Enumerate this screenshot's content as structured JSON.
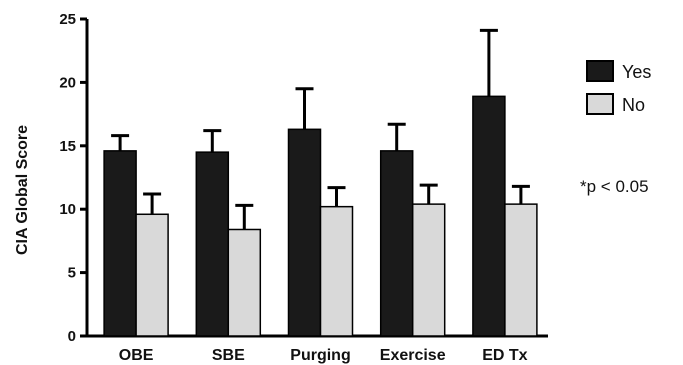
{
  "chart_data": {
    "type": "bar",
    "title": "",
    "xlabel": "",
    "ylabel": "CIA Global Score",
    "ylim": [
      0,
      25
    ],
    "yticks": [
      0,
      5,
      10,
      15,
      20,
      25
    ],
    "categories": [
      "OBE",
      "SBE",
      "Purging",
      "Exercise",
      "ED Tx"
    ],
    "series": [
      {
        "name": "Yes",
        "color": "#1a1a1a",
        "values": [
          14.6,
          14.5,
          16.3,
          14.6,
          18.9
        ],
        "error": [
          1.2,
          1.7,
          3.2,
          2.1,
          5.2
        ]
      },
      {
        "name": "No",
        "color": "#d9d9d9",
        "values": [
          9.6,
          8.4,
          10.2,
          10.4,
          10.4
        ],
        "error": [
          1.6,
          1.9,
          1.5,
          1.5,
          1.4
        ]
      }
    ],
    "legend": {
      "placement": "right"
    },
    "annotation": "*p < 0.05",
    "grid": false
  }
}
